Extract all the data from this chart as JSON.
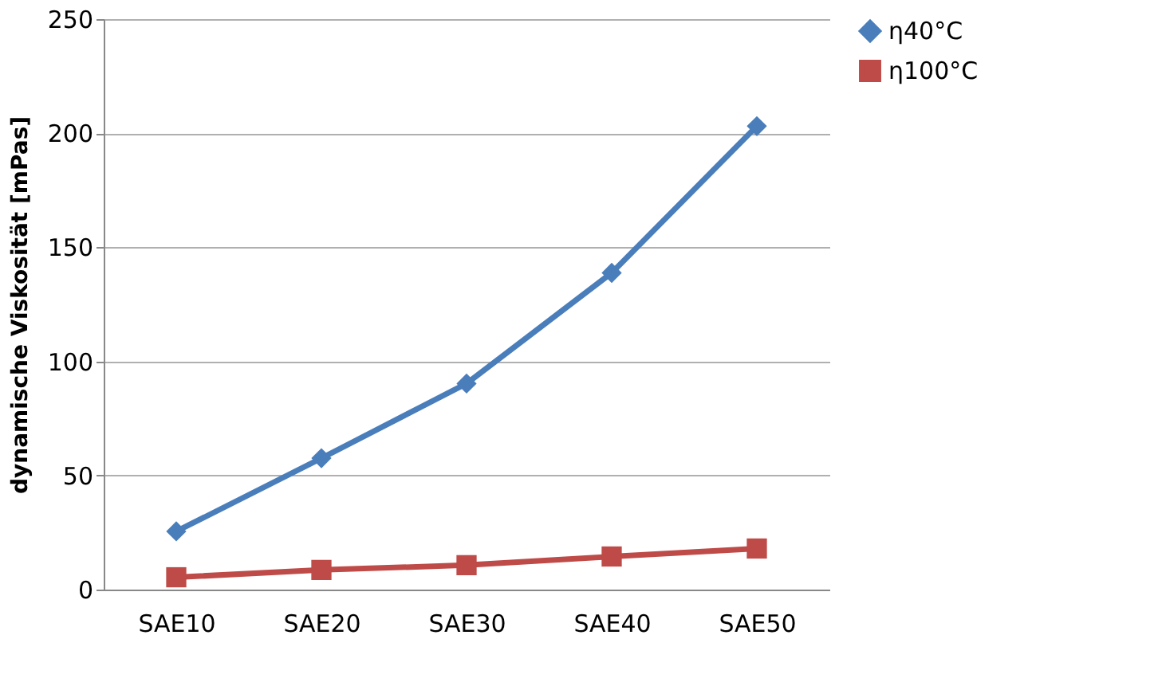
{
  "chart_data": {
    "type": "line",
    "ylabel": "dynamische Viskosität [mPas]",
    "categories": [
      "SAE10",
      "SAE20",
      "SAE30",
      "SAE40",
      "SAE50"
    ],
    "series": [
      {
        "name": "η40°C",
        "color": "#4a7ebb",
        "marker": "diamond",
        "values": [
          25.5,
          57.6,
          90.3,
          138.8,
          203.1
        ]
      },
      {
        "name": "η100°C",
        "color": "#be4b48",
        "marker": "square",
        "values": [
          5.4,
          8.6,
          10.7,
          14.5,
          18
        ]
      }
    ],
    "ylim": [
      0,
      250
    ],
    "yticks": [
      0,
      50,
      100,
      150,
      200,
      250
    ],
    "grid": "y",
    "line_style": "solid",
    "legend": "right"
  }
}
